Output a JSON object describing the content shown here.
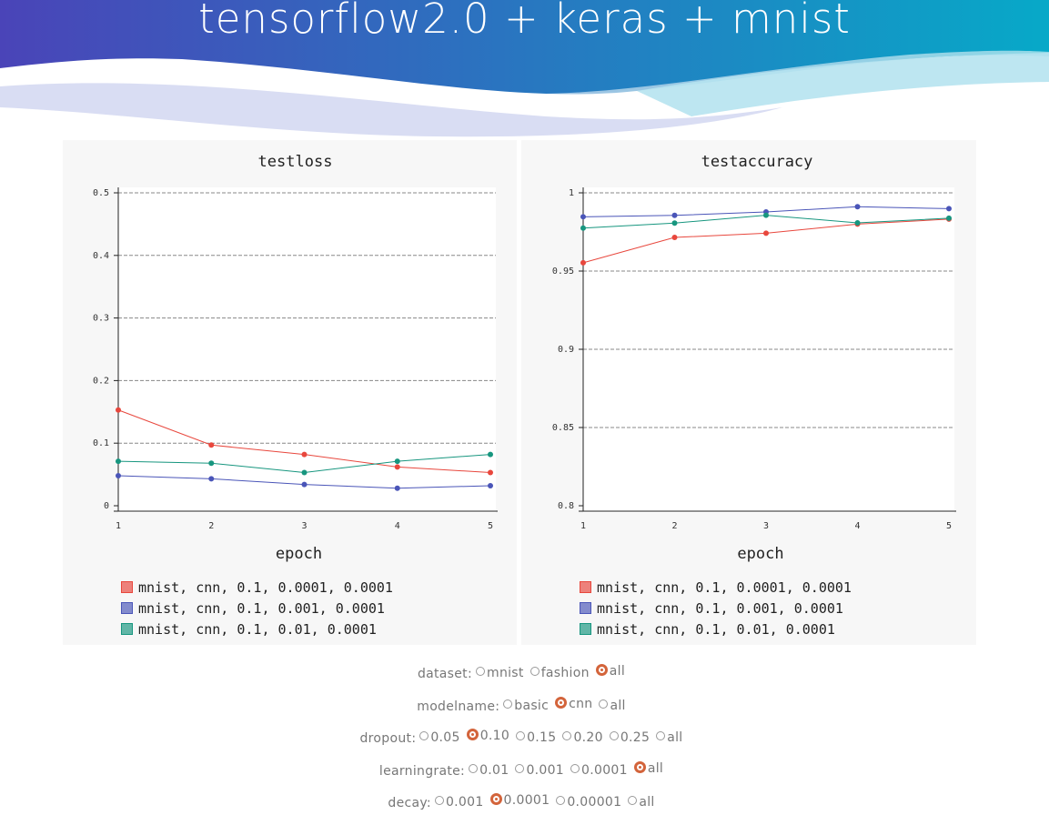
{
  "header": {
    "title": "tensorflow2.0 + keras + mnist"
  },
  "colors": {
    "banner_start": "#4a44b8",
    "banner_end": "#07a9c8",
    "series_red": "#e8473d",
    "series_blue": "#4a55b8",
    "series_teal": "#17967f",
    "radio_checked": "#d3643b"
  },
  "chart_data": [
    {
      "type": "line",
      "title": "testloss",
      "xlabel": "epoch",
      "ylabel": "",
      "x": [
        1,
        2,
        3,
        4,
        5
      ],
      "xlim": [
        1,
        5
      ],
      "ylim": [
        0,
        0.5
      ],
      "yticks": [
        "0",
        "0.1",
        "0.2",
        "0.3",
        "0.4",
        "0.5"
      ],
      "xticks": [
        "1",
        "2",
        "3",
        "4",
        "5"
      ],
      "grid": "horizontal dashed",
      "legend": "bottom",
      "series": [
        {
          "name": "mnist, cnn, 0.1, 0.0001, 0.0001",
          "color": "#e8473d",
          "values": [
            0.153,
            0.097,
            0.082,
            0.062,
            0.053
          ]
        },
        {
          "name": "mnist, cnn, 0.1, 0.001, 0.0001",
          "color": "#4a55b8",
          "values": [
            0.048,
            0.043,
            0.034,
            0.028,
            0.032
          ]
        },
        {
          "name": "mnist, cnn, 0.1, 0.01, 0.0001",
          "color": "#17967f",
          "values": [
            0.071,
            0.068,
            0.053,
            0.071,
            0.082
          ]
        }
      ]
    },
    {
      "type": "line",
      "title": "testaccuracy",
      "xlabel": "epoch",
      "ylabel": "",
      "x": [
        1,
        2,
        3,
        4,
        5
      ],
      "xlim": [
        1,
        5
      ],
      "ylim": [
        0.8,
        1
      ],
      "yticks": [
        "0.8",
        "0.85",
        "0.9",
        "0.95",
        "1"
      ],
      "xticks": [
        "1",
        "2",
        "3",
        "4",
        "5"
      ],
      "grid": "horizontal dashed",
      "legend": "bottom",
      "series": [
        {
          "name": "mnist, cnn, 0.1, 0.0001, 0.0001",
          "color": "#e8473d",
          "values": [
            0.9553,
            0.9715,
            0.9742,
            0.98,
            0.9832
          ]
        },
        {
          "name": "mnist, cnn, 0.1, 0.001, 0.0001",
          "color": "#4a55b8",
          "values": [
            0.9847,
            0.9856,
            0.9878,
            0.9911,
            0.9899
          ]
        },
        {
          "name": "mnist, cnn, 0.1, 0.01, 0.0001",
          "color": "#17967f",
          "values": [
            0.9775,
            0.9807,
            0.9857,
            0.9808,
            0.9838
          ]
        }
      ]
    }
  ],
  "controls": [
    {
      "label": "dataset:",
      "options": [
        {
          "text": "mnist",
          "checked": false
        },
        {
          "text": "fashion",
          "checked": false
        },
        {
          "text": "all",
          "checked": true
        }
      ]
    },
    {
      "label": "modelname:",
      "options": [
        {
          "text": "basic",
          "checked": false
        },
        {
          "text": "cnn",
          "checked": true
        },
        {
          "text": "all",
          "checked": false
        }
      ]
    },
    {
      "label": "dropout:",
      "options": [
        {
          "text": "0.05",
          "checked": false
        },
        {
          "text": "0.10",
          "checked": true
        },
        {
          "text": "0.15",
          "checked": false
        },
        {
          "text": "0.20",
          "checked": false
        },
        {
          "text": "0.25",
          "checked": false
        },
        {
          "text": "all",
          "checked": false
        }
      ]
    },
    {
      "label": "learningrate:",
      "options": [
        {
          "text": "0.01",
          "checked": false
        },
        {
          "text": "0.001",
          "checked": false
        },
        {
          "text": "0.0001",
          "checked": false
        },
        {
          "text": "all",
          "checked": true
        }
      ]
    },
    {
      "label": "decay:",
      "options": [
        {
          "text": "0.001",
          "checked": false
        },
        {
          "text": "0.0001",
          "checked": true
        },
        {
          "text": "0.00001",
          "checked": false
        },
        {
          "text": "all",
          "checked": false
        }
      ]
    }
  ]
}
